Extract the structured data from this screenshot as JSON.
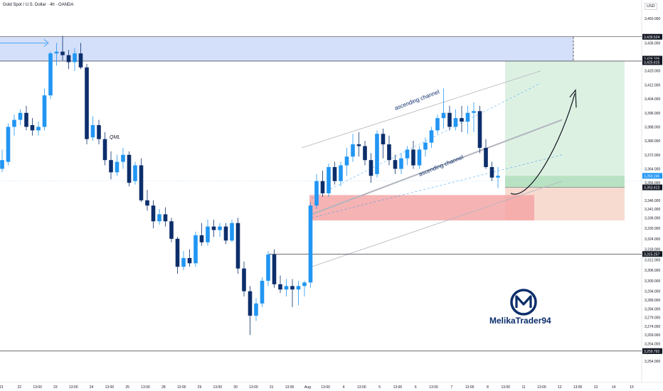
{
  "header": {
    "title": "Gold Spot / U.S. Dollar · 4h · OANDA",
    "currency": "USD"
  },
  "brand": {
    "name": "MelikaTrader94",
    "logo_letter": "M"
  },
  "colors": {
    "bull": "#2196f3",
    "bear": "#0c2e6b",
    "channel": "#b2b5be",
    "resistance_zone": "#c5d4f8",
    "demand_zone": "#f4a6a6",
    "target_zone": "#d9efe0",
    "risk_zone": "#f6d7cc"
  },
  "chart_data": {
    "type": "candlestick",
    "symbol": "Gold Spot / U.S. Dollar",
    "interval": "4h",
    "source": "OANDA",
    "ylim": [
      3254,
      3455
    ],
    "y_ticks": [
      3450,
      3436,
      3420,
      3412,
      3404,
      3396,
      3388,
      3380,
      3372,
      3364,
      3356,
      3346,
      3341,
      3336,
      3330,
      3324,
      3318,
      3312,
      3306,
      3300,
      3294,
      3289,
      3284,
      3279,
      3274,
      3269,
      3264,
      3259,
      3254
    ],
    "x_ticks": [
      "21",
      "22",
      "13:00",
      "23",
      "13:00",
      "24",
      "13:00",
      "25",
      "13:00",
      "28",
      "13:00",
      "29",
      "13:00",
      "30",
      "13:00",
      "31",
      "13:00",
      "Aug",
      "13:00",
      "4",
      "13:00",
      "5",
      "13:00",
      "6",
      "13:00",
      "7",
      "13:00",
      "8",
      "13:00",
      "11",
      "13:00",
      "12",
      "13:00",
      "13",
      "14",
      "15"
    ],
    "price_labels": [
      {
        "value": "3,439.524",
        "price": 3439.5,
        "bg": "#131722"
      },
      {
        "value": "3,426.336",
        "price": 3427.0,
        "bg": "#131722"
      },
      {
        "value": "3,425.615",
        "price": 3425.0,
        "bg": "#131722"
      },
      {
        "value": "3,359.245",
        "price": 3360.0,
        "bg": "#2196f3"
      },
      {
        "value": "3,353.413",
        "price": 3353.4,
        "bg": "#131722"
      },
      {
        "value": "3,315.257",
        "price": 3315.3,
        "bg": "#131722"
      },
      {
        "value": "3,259.792",
        "price": 3259.8,
        "bg": "#131722"
      }
    ],
    "levels": [
      3439.5,
      3425.6,
      3315.3,
      3259.8
    ],
    "annotations": [
      "QML",
      "ascending channel",
      "ascending channel"
    ],
    "candles": [
      [
        3364,
        3375,
        3362,
        3369
      ],
      [
        3368,
        3390,
        3366,
        3388
      ],
      [
        3388,
        3395,
        3383,
        3392
      ],
      [
        3392,
        3398,
        3389,
        3396
      ],
      [
        3396,
        3400,
        3386,
        3388
      ],
      [
        3389,
        3393,
        3383,
        3386
      ],
      [
        3386,
        3391,
        3383,
        3388
      ],
      [
        3388,
        3410,
        3386,
        3406
      ],
      [
        3406,
        3431,
        3404,
        3430
      ],
      [
        3430,
        3436,
        3423,
        3431
      ],
      [
        3431,
        3440,
        3426,
        3429
      ],
      [
        3429,
        3432,
        3421,
        3425
      ],
      [
        3425,
        3433,
        3420,
        3430
      ],
      [
        3430,
        3436,
        3421,
        3422
      ],
      [
        3422,
        3424,
        3378,
        3381
      ],
      [
        3382,
        3394,
        3380,
        3389
      ],
      [
        3389,
        3392,
        3378,
        3381
      ],
      [
        3381,
        3385,
        3366,
        3369
      ],
      [
        3369,
        3374,
        3358,
        3362
      ],
      [
        3362,
        3372,
        3360,
        3368
      ],
      [
        3368,
        3376,
        3364,
        3372
      ],
      [
        3372,
        3374,
        3354,
        3356
      ],
      [
        3357,
        3368,
        3355,
        3366
      ],
      [
        3366,
        3370,
        3345,
        3346
      ],
      [
        3346,
        3352,
        3340,
        3343
      ],
      [
        3343,
        3346,
        3330,
        3334
      ],
      [
        3334,
        3341,
        3332,
        3338
      ],
      [
        3338,
        3342,
        3331,
        3334
      ],
      [
        3334,
        3336,
        3322,
        3324
      ],
      [
        3324,
        3325,
        3304,
        3308
      ],
      [
        3308,
        3317,
        3306,
        3313
      ],
      [
        3313,
        3318,
        3308,
        3310
      ],
      [
        3310,
        3328,
        3308,
        3326
      ],
      [
        3326,
        3333,
        3320,
        3322
      ],
      [
        3322,
        3335,
        3320,
        3331
      ],
      [
        3331,
        3335,
        3325,
        3329
      ],
      [
        3329,
        3333,
        3325,
        3331
      ],
      [
        3331,
        3333,
        3321,
        3323
      ],
      [
        3323,
        3335,
        3322,
        3333
      ],
      [
        3333,
        3336,
        3304,
        3307
      ],
      [
        3307,
        3311,
        3291,
        3294
      ],
      [
        3294,
        3297,
        3269,
        3280
      ],
      [
        3280,
        3290,
        3277,
        3287
      ],
      [
        3287,
        3302,
        3285,
        3300
      ],
      [
        3300,
        3317,
        3297,
        3315
      ],
      [
        3315,
        3318,
        3296,
        3298
      ],
      [
        3298,
        3303,
        3293,
        3295
      ],
      [
        3295,
        3301,
        3291,
        3297
      ],
      [
        3297,
        3301,
        3285,
        3295
      ],
      [
        3295,
        3300,
        3286,
        3297
      ],
      [
        3297,
        3300,
        3291,
        3299
      ],
      [
        3299,
        3345,
        3296,
        3343
      ],
      [
        3343,
        3361,
        3341,
        3357
      ],
      [
        3357,
        3363,
        3348,
        3350
      ],
      [
        3350,
        3367,
        3348,
        3365
      ],
      [
        3365,
        3368,
        3355,
        3357
      ],
      [
        3357,
        3368,
        3354,
        3366
      ],
      [
        3366,
        3376,
        3360,
        3371
      ],
      [
        3371,
        3384,
        3368,
        3378
      ],
      [
        3378,
        3385,
        3371,
        3377
      ],
      [
        3377,
        3380,
        3366,
        3369
      ],
      [
        3369,
        3373,
        3356,
        3360
      ],
      [
        3361,
        3386,
        3359,
        3384
      ],
      [
        3384,
        3387,
        3370,
        3378
      ],
      [
        3378,
        3383,
        3366,
        3369
      ],
      [
        3369,
        3372,
        3361,
        3364
      ],
      [
        3364,
        3373,
        3361,
        3370
      ],
      [
        3370,
        3377,
        3366,
        3375
      ],
      [
        3375,
        3380,
        3364,
        3366
      ],
      [
        3366,
        3377,
        3364,
        3375
      ],
      [
        3375,
        3382,
        3371,
        3379
      ],
      [
        3379,
        3388,
        3376,
        3386
      ],
      [
        3386,
        3395,
        3384,
        3393
      ],
      [
        3393,
        3410,
        3387,
        3396
      ],
      [
        3396,
        3400,
        3386,
        3388
      ],
      [
        3388,
        3398,
        3386,
        3393
      ],
      [
        3393,
        3400,
        3385,
        3391
      ],
      [
        3391,
        3400,
        3384,
        3396
      ],
      [
        3396,
        3402,
        3385,
        3397
      ],
      [
        3397,
        3400,
        3373,
        3376
      ],
      [
        3376,
        3381,
        3364,
        3365
      ],
      [
        3365,
        3368,
        3357,
        3359
      ],
      [
        3359,
        3365,
        3353,
        3360
      ]
    ]
  }
}
